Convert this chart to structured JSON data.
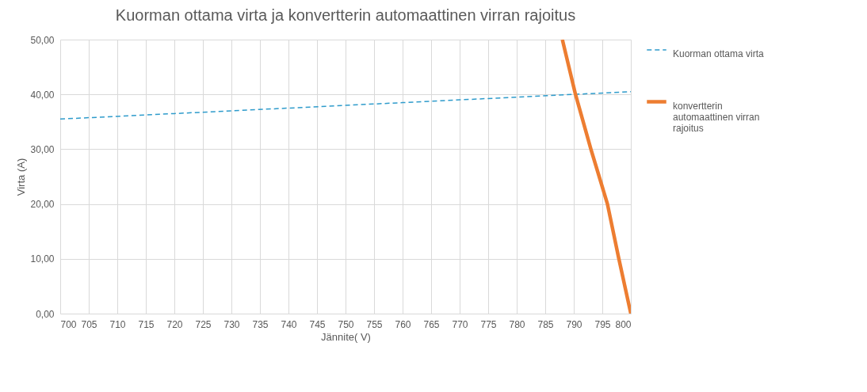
{
  "chart_data": {
    "type": "line",
    "title": "Kuorman ottama virta ja konvertterin automaattinen virran rajoitus",
    "xlabel": "Jännite( V)",
    "ylabel": "Virta (A)",
    "xlim": [
      700,
      800
    ],
    "xticks": [
      700,
      705,
      710,
      715,
      720,
      725,
      730,
      735,
      740,
      745,
      750,
      755,
      760,
      765,
      770,
      775,
      780,
      785,
      790,
      795,
      800
    ],
    "ylim": [
      0,
      50
    ],
    "yticks": [
      {
        "value": 0,
        "label": "0,00"
      },
      {
        "value": 10,
        "label": "10,00"
      },
      {
        "value": 20,
        "label": "20,00"
      },
      {
        "value": 30,
        "label": "30,00"
      },
      {
        "value": 40,
        "label": "40,00"
      },
      {
        "value": 50,
        "label": "50,00"
      }
    ],
    "grid": true,
    "legend": "right",
    "series": [
      {
        "name": "Kuorman ottama virta",
        "color": "#2e9bcb",
        "line_style": "dashed",
        "x": [
          700,
          710,
          720,
          730,
          740,
          750,
          760,
          770,
          780,
          790,
          800
        ],
        "values": [
          35.5,
          36,
          36.5,
          37,
          37.5,
          38,
          38.5,
          39,
          39.5,
          40,
          40.5
        ]
      },
      {
        "name": "konvertterin automaattinen virran rajoitus",
        "color": "#ed7d31",
        "line_style": "solid",
        "x": [
          788,
          790.3,
          793,
          795.9,
          797.9,
          800
        ],
        "values": [
          50,
          40,
          30,
          20,
          10,
          0
        ]
      }
    ]
  }
}
